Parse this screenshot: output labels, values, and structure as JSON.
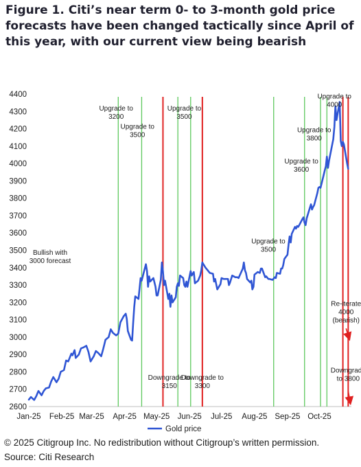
{
  "title": "Figure 1. Citi’s near term 0- to 3-month gold price forecasts have been changed tactically since April of this year, with our current view being bearish",
  "copyright": "© 2025 Citigroup Inc. No redistribution without Citigroup’s written permission.",
  "source": "Source: Citi Research",
  "colors": {
    "gold_line": "#2F55D4",
    "upgrade_line": "#5CC85C",
    "downgrade_line": "#E02020",
    "arrow": "#E02020"
  },
  "chart_data": {
    "type": "line",
    "ylim": [
      2600,
      4400
    ],
    "yticks": [
      2600,
      2700,
      2800,
      2900,
      3000,
      3100,
      3200,
      3300,
      3400,
      3500,
      3600,
      3700,
      3800,
      3900,
      4000,
      4100,
      4200,
      4300,
      4400
    ],
    "xlim": [
      "2025-01-01",
      "2025-10-31"
    ],
    "xticks": [
      {
        "date": "2025-01-01",
        "label": "Jan-25"
      },
      {
        "date": "2025-02-01",
        "label": "Feb-25"
      },
      {
        "date": "2025-03-01",
        "label": "Mar-25"
      },
      {
        "date": "2025-04-01",
        "label": "Apr-25"
      },
      {
        "date": "2025-05-01",
        "label": "May-25"
      },
      {
        "date": "2025-06-01",
        "label": "Jun-25"
      },
      {
        "date": "2025-07-01",
        "label": "Jul-25"
      },
      {
        "date": "2025-08-01",
        "label": "Aug-25"
      },
      {
        "date": "2025-09-01",
        "label": "Sep-25"
      },
      {
        "date": "2025-10-01",
        "label": "Oct-25"
      }
    ],
    "legend": {
      "position": "bottom",
      "label": "Gold price"
    },
    "series": [
      {
        "name": "Gold price",
        "points": [
          [
            "2025-01-01",
            2640
          ],
          [
            "2025-01-03",
            2655
          ],
          [
            "2025-01-06",
            2638
          ],
          [
            "2025-01-08",
            2660
          ],
          [
            "2025-01-10",
            2690
          ],
          [
            "2025-01-13",
            2665
          ],
          [
            "2025-01-15",
            2690
          ],
          [
            "2025-01-17",
            2705
          ],
          [
            "2025-01-20",
            2710
          ],
          [
            "2025-01-22",
            2745
          ],
          [
            "2025-01-24",
            2770
          ],
          [
            "2025-01-27",
            2740
          ],
          [
            "2025-01-29",
            2760
          ],
          [
            "2025-01-31",
            2800
          ],
          [
            "2025-02-03",
            2810
          ],
          [
            "2025-02-05",
            2865
          ],
          [
            "2025-02-07",
            2860
          ],
          [
            "2025-02-10",
            2905
          ],
          [
            "2025-02-11",
            2895
          ],
          [
            "2025-02-13",
            2925
          ],
          [
            "2025-02-14",
            2880
          ],
          [
            "2025-02-17",
            2900
          ],
          [
            "2025-02-19",
            2935
          ],
          [
            "2025-02-21",
            2940
          ],
          [
            "2025-02-24",
            2950
          ],
          [
            "2025-02-26",
            2915
          ],
          [
            "2025-02-28",
            2860
          ],
          [
            "2025-03-03",
            2890
          ],
          [
            "2025-03-05",
            2920
          ],
          [
            "2025-03-07",
            2910
          ],
          [
            "2025-03-10",
            2890
          ],
          [
            "2025-03-12",
            2935
          ],
          [
            "2025-03-14",
            2985
          ],
          [
            "2025-03-17",
            3000
          ],
          [
            "2025-03-19",
            3045
          ],
          [
            "2025-03-21",
            3025
          ],
          [
            "2025-03-24",
            3010
          ],
          [
            "2025-03-26",
            3020
          ],
          [
            "2025-03-28",
            3085
          ],
          [
            "2025-03-31",
            3120
          ],
          [
            "2025-04-02",
            3135
          ],
          [
            "2025-04-03",
            3105
          ],
          [
            "2025-04-04",
            3035
          ],
          [
            "2025-04-07",
            2985
          ],
          [
            "2025-04-08",
            2980
          ],
          [
            "2025-04-09",
            3080
          ],
          [
            "2025-04-10",
            3175
          ],
          [
            "2025-04-11",
            3235
          ],
          [
            "2025-04-14",
            3220
          ],
          [
            "2025-04-16",
            3340
          ],
          [
            "2025-04-17",
            3325
          ],
          [
            "2025-04-21",
            3420
          ],
          [
            "2025-04-22",
            3380
          ],
          [
            "2025-04-23",
            3290
          ],
          [
            "2025-04-24",
            3350
          ],
          [
            "2025-04-25",
            3320
          ],
          [
            "2025-04-28",
            3340
          ],
          [
            "2025-04-30",
            3290
          ],
          [
            "2025-05-01",
            3240
          ],
          [
            "2025-05-02",
            3240
          ],
          [
            "2025-05-05",
            3330
          ],
          [
            "2025-05-06",
            3430
          ],
          [
            "2025-05-07",
            3380
          ],
          [
            "2025-05-08",
            3300
          ],
          [
            "2025-05-09",
            3325
          ],
          [
            "2025-05-12",
            3220
          ],
          [
            "2025-05-13",
            3250
          ],
          [
            "2025-05-14",
            3175
          ],
          [
            "2025-05-15",
            3240
          ],
          [
            "2025-05-16",
            3200
          ],
          [
            "2025-05-19",
            3230
          ],
          [
            "2025-05-20",
            3290
          ],
          [
            "2025-05-21",
            3310
          ],
          [
            "2025-05-22",
            3295
          ],
          [
            "2025-05-23",
            3355
          ],
          [
            "2025-05-26",
            3340
          ],
          [
            "2025-05-27",
            3300
          ],
          [
            "2025-05-28",
            3290
          ],
          [
            "2025-05-29",
            3320
          ],
          [
            "2025-05-30",
            3290
          ],
          [
            "2025-06-02",
            3380
          ],
          [
            "2025-06-03",
            3355
          ],
          [
            "2025-06-05",
            3375
          ],
          [
            "2025-06-06",
            3310
          ],
          [
            "2025-06-09",
            3325
          ],
          [
            "2025-06-11",
            3355
          ],
          [
            "2025-06-12",
            3385
          ],
          [
            "2025-06-13",
            3430
          ],
          [
            "2025-06-16",
            3400
          ],
          [
            "2025-06-18",
            3385
          ],
          [
            "2025-06-20",
            3370
          ],
          [
            "2025-06-23",
            3365
          ],
          [
            "2025-06-24",
            3320
          ],
          [
            "2025-06-25",
            3335
          ],
          [
            "2025-06-27",
            3275
          ],
          [
            "2025-06-30",
            3305
          ],
          [
            "2025-07-01",
            3340
          ],
          [
            "2025-07-03",
            3335
          ],
          [
            "2025-07-07",
            3335
          ],
          [
            "2025-07-08",
            3300
          ],
          [
            "2025-07-09",
            3315
          ],
          [
            "2025-07-11",
            3355
          ],
          [
            "2025-07-14",
            3345
          ],
          [
            "2025-07-16",
            3345
          ],
          [
            "2025-07-17",
            3340
          ],
          [
            "2025-07-21",
            3395
          ],
          [
            "2025-07-22",
            3430
          ],
          [
            "2025-07-23",
            3385
          ],
          [
            "2025-07-24",
            3370
          ],
          [
            "2025-07-25",
            3335
          ],
          [
            "2025-07-28",
            3315
          ],
          [
            "2025-07-29",
            3325
          ],
          [
            "2025-07-30",
            3275
          ],
          [
            "2025-07-31",
            3290
          ],
          [
            "2025-08-01",
            3360
          ],
          [
            "2025-08-04",
            3375
          ],
          [
            "2025-08-06",
            3370
          ],
          [
            "2025-08-07",
            3395
          ],
          [
            "2025-08-08",
            3395
          ],
          [
            "2025-08-11",
            3345
          ],
          [
            "2025-08-12",
            3350
          ],
          [
            "2025-08-14",
            3335
          ],
          [
            "2025-08-15",
            3335
          ],
          [
            "2025-08-18",
            3330
          ],
          [
            "2025-08-20",
            3345
          ],
          [
            "2025-08-21",
            3340
          ],
          [
            "2025-08-22",
            3370
          ],
          [
            "2025-08-25",
            3365
          ],
          [
            "2025-08-26",
            3395
          ],
          [
            "2025-08-27",
            3395
          ],
          [
            "2025-08-28",
            3415
          ],
          [
            "2025-08-29",
            3450
          ],
          [
            "2025-09-01",
            3475
          ],
          [
            "2025-09-02",
            3535
          ],
          [
            "2025-09-03",
            3580
          ],
          [
            "2025-09-04",
            3545
          ],
          [
            "2025-09-05",
            3595
          ],
          [
            "2025-09-08",
            3635
          ],
          [
            "2025-09-09",
            3625
          ],
          [
            "2025-09-10",
            3640
          ],
          [
            "2025-09-11",
            3635
          ],
          [
            "2025-09-12",
            3645
          ],
          [
            "2025-09-15",
            3680
          ],
          [
            "2025-09-16",
            3690
          ],
          [
            "2025-09-17",
            3660
          ],
          [
            "2025-09-18",
            3645
          ],
          [
            "2025-09-19",
            3685
          ],
          [
            "2025-09-22",
            3745
          ],
          [
            "2025-09-23",
            3765
          ],
          [
            "2025-09-24",
            3735
          ],
          [
            "2025-09-25",
            3750
          ],
          [
            "2025-09-26",
            3760
          ],
          [
            "2025-09-29",
            3830
          ],
          [
            "2025-09-30",
            3860
          ],
          [
            "2025-10-01",
            3865
          ],
          [
            "2025-10-02",
            3860
          ],
          [
            "2025-10-03",
            3885
          ],
          [
            "2025-10-06",
            3960
          ],
          [
            "2025-10-07",
            3985
          ],
          [
            "2025-10-08",
            4040
          ],
          [
            "2025-10-09",
            3975
          ],
          [
            "2025-10-10",
            4015
          ],
          [
            "2025-10-13",
            4110
          ],
          [
            "2025-10-14",
            4140
          ],
          [
            "2025-10-15",
            4210
          ],
          [
            "2025-10-16",
            4330
          ],
          [
            "2025-10-17",
            4250
          ],
          [
            "2025-10-20",
            4355
          ],
          [
            "2025-10-21",
            4130
          ],
          [
            "2025-10-22",
            4100
          ],
          [
            "2025-10-23",
            4125
          ],
          [
            "2025-10-24",
            4110
          ],
          [
            "2025-10-27",
            4000
          ],
          [
            "2025-10-28",
            3970
          ]
        ]
      }
    ],
    "annotations": [
      {
        "date": "2025-01-21",
        "value": 3475,
        "lines": [
          "Bullish with",
          "3000 forecast"
        ],
        "align": "center"
      },
      {
        "date": "2025-03-24",
        "value": 4305,
        "lines": [
          "Upgrade to",
          "3200"
        ],
        "align": "center"
      },
      {
        "date": "2025-04-13",
        "value": 4200,
        "lines": [
          "Upgrade to",
          "3500"
        ],
        "align": "center"
      },
      {
        "date": "2025-05-27",
        "value": 4305,
        "lines": [
          "Upgrade to",
          "3500"
        ],
        "align": "center"
      },
      {
        "date": "2025-05-13",
        "value": 2755,
        "lines": [
          "Downgrade to",
          "3150"
        ],
        "align": "center"
      },
      {
        "date": "2025-06-13",
        "value": 2755,
        "lines": [
          "Downgrade to",
          "3300"
        ],
        "align": "center"
      },
      {
        "date": "2025-08-14",
        "value": 3540,
        "lines": [
          "Upgrade to",
          "3500"
        ],
        "align": "center"
      },
      {
        "date": "2025-09-14",
        "value": 4000,
        "lines": [
          "Upgrade to",
          "3600"
        ],
        "align": "center"
      },
      {
        "date": "2025-09-26",
        "value": 4180,
        "lines": [
          "Upgrade to",
          "3800"
        ],
        "align": "center"
      },
      {
        "date": "2025-10-15",
        "value": 4375,
        "lines": [
          "Upgrade to",
          "4000"
        ],
        "align": "center"
      },
      {
        "date": "2025-10-26",
        "value": 3180,
        "lines": [
          "Re-iterate",
          "4000",
          "(bearish)"
        ],
        "align": "center"
      },
      {
        "date": "2025-10-28",
        "value": 2795,
        "lines": [
          "Downgrade",
          "to 3800"
        ],
        "align": "center"
      }
    ],
    "upgrade_lines": [
      "2025-03-26",
      "2025-04-17",
      "2025-05-21",
      "2025-06-02",
      "2025-08-19",
      "2025-09-17",
      "2025-10-02",
      "2025-10-08"
    ],
    "downgrade_lines": [
      "2025-05-07",
      "2025-06-13",
      "2025-10-23",
      "2025-10-28"
    ],
    "arrows": [
      {
        "from": [
          "2025-10-26",
          3050
        ],
        "to": [
          "2025-10-29",
          2990
        ]
      },
      {
        "from": [
          "2025-10-28",
          2690
        ],
        "to": [
          "2025-10-30",
          2620
        ]
      }
    ]
  }
}
